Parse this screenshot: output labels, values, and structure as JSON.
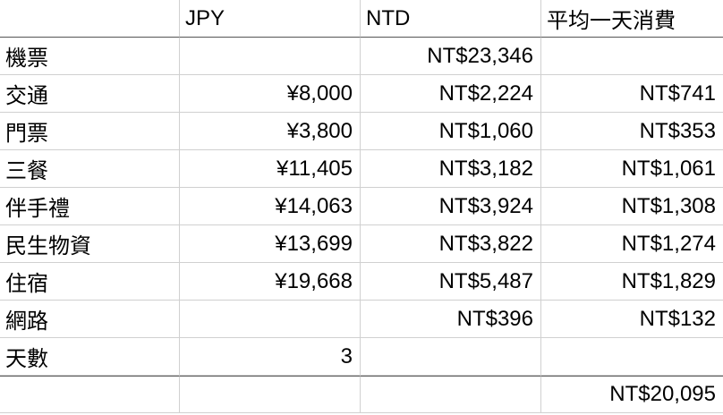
{
  "table": {
    "header": [
      null,
      "JPY",
      "NTD",
      "平均一天消費"
    ],
    "rows": [
      [
        "機票",
        null,
        "NT$23,346",
        null
      ],
      [
        "交通",
        "¥8,000",
        "NT$2,224",
        "NT$741"
      ],
      [
        "門票",
        "¥3,800",
        "NT$1,060",
        "NT$353"
      ],
      [
        "三餐",
        "¥11,405",
        "NT$3,182",
        "NT$1,061"
      ],
      [
        "伴手禮",
        "¥14,063",
        "NT$3,924",
        "NT$1,308"
      ],
      [
        "民生物資",
        "¥13,699",
        "NT$3,822",
        "NT$1,274"
      ],
      [
        "住宿",
        "¥19,668",
        "NT$5,487",
        "NT$1,829"
      ],
      [
        "網路",
        null,
        "NT$396",
        "NT$132"
      ],
      [
        "天數",
        3,
        null,
        null
      ],
      [
        null,
        null,
        null,
        "NT$20,095"
      ]
    ]
  }
}
